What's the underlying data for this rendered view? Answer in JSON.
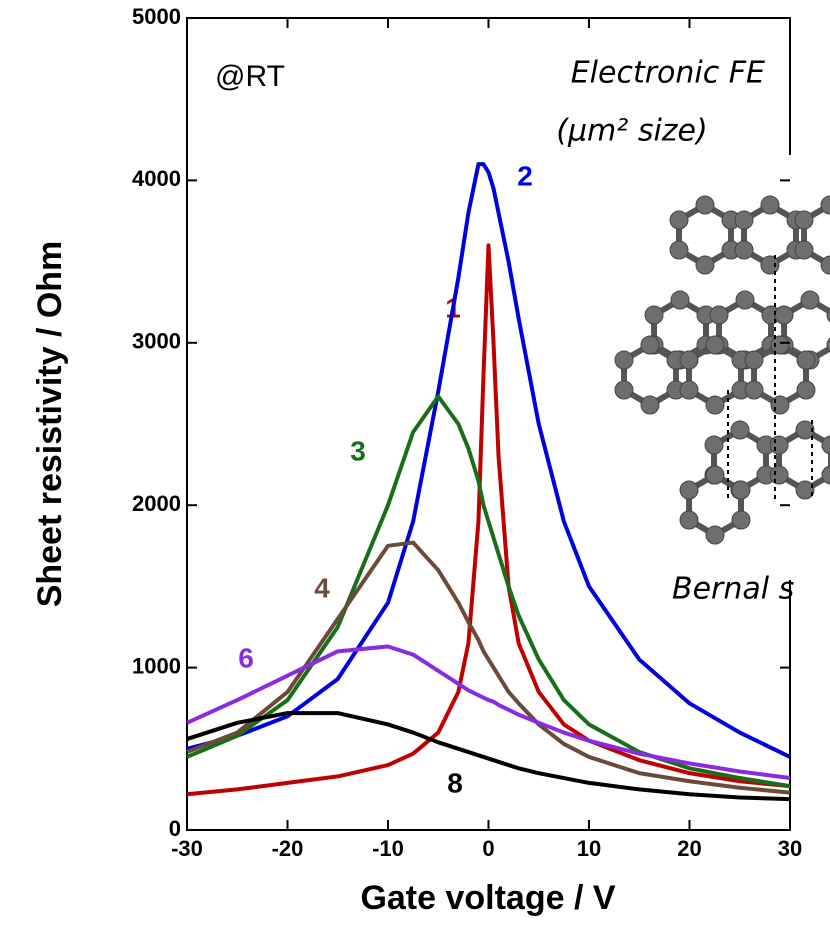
{
  "chart_data": {
    "type": "line",
    "xlabel": "Gate voltage / V",
    "ylabel": "Sheet resistivity / Ohm",
    "annotations": [
      "@RT",
      "Electronic FE",
      "(μm² size)",
      "Bernal s"
    ],
    "x": [
      -30,
      -25,
      -20,
      -15,
      -10,
      -7.5,
      -5,
      -3,
      -2,
      -1,
      -0.5,
      0,
      0.5,
      1,
      2,
      3,
      5,
      7.5,
      10,
      15,
      20,
      25,
      30
    ],
    "series": [
      {
        "name": "1",
        "color": "#c00000",
        "values": [
          220,
          250,
          290,
          330,
          400,
          470,
          600,
          850,
          1150,
          1900,
          2800,
          3600,
          3000,
          2300,
          1500,
          1150,
          850,
          650,
          550,
          430,
          350,
          300,
          270
        ]
      },
      {
        "name": "2",
        "color": "#0000e0",
        "values": [
          500,
          580,
          700,
          930,
          1400,
          1900,
          2700,
          3400,
          3800,
          4100,
          4100,
          4050,
          3950,
          3800,
          3500,
          3150,
          2500,
          1900,
          1500,
          1050,
          780,
          600,
          450
        ]
      },
      {
        "name": "3",
        "color": "#1a6e1a",
        "values": [
          450,
          580,
          800,
          1250,
          2000,
          2450,
          2670,
          2500,
          2350,
          2150,
          2000,
          1900,
          1800,
          1700,
          1500,
          1320,
          1050,
          800,
          650,
          480,
          380,
          320,
          270
        ]
      },
      {
        "name": "4",
        "color": "#6b4a3a",
        "values": [
          480,
          600,
          850,
          1300,
          1750,
          1770,
          1600,
          1400,
          1280,
          1170,
          1100,
          1050,
          1000,
          950,
          850,
          780,
          650,
          530,
          450,
          350,
          300,
          260,
          230
        ]
      },
      {
        "name": "6",
        "color": "#8a2be2",
        "values": [
          660,
          800,
          950,
          1100,
          1130,
          1080,
          980,
          900,
          860,
          830,
          815,
          800,
          790,
          770,
          740,
          710,
          660,
          600,
          550,
          470,
          410,
          360,
          320
        ]
      },
      {
        "name": "8",
        "color": "#000000",
        "values": [
          560,
          660,
          720,
          720,
          650,
          600,
          540,
          500,
          480,
          460,
          450,
          440,
          430,
          420,
          400,
          380,
          350,
          320,
          290,
          250,
          220,
          200,
          190
        ]
      }
    ],
    "xlim": [
      -30,
      30
    ],
    "ylim": [
      0,
      5000
    ],
    "xticks": [
      -30,
      -20,
      -10,
      0,
      10,
      20,
      30
    ],
    "yticks": [
      0,
      1000,
      2000,
      3000,
      4000,
      5000
    ]
  }
}
